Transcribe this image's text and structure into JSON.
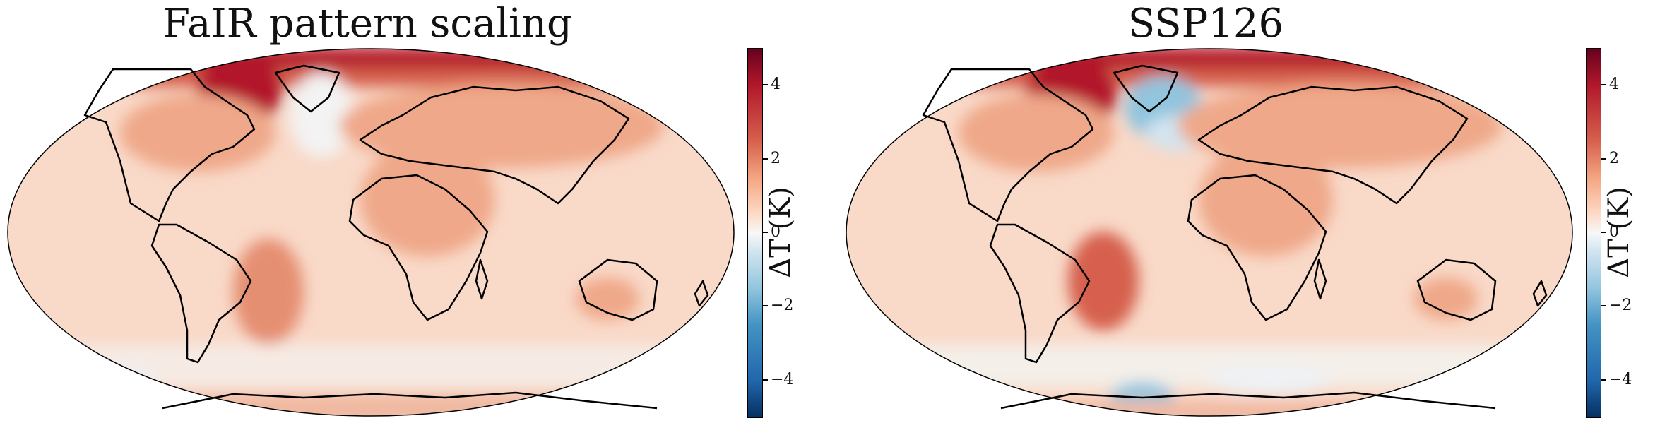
{
  "figure": {
    "panels": [
      {
        "title": "FaIR pattern scaling",
        "colorbar_label": "ΔT (K)",
        "tick_labels": [
          "4",
          "2",
          "0",
          "−2",
          "−4"
        ],
        "tick_values": [
          4,
          2,
          0,
          -2,
          -4
        ],
        "range": [
          -5,
          5
        ]
      },
      {
        "title": "SSP126",
        "colorbar_label": "ΔT (K)",
        "tick_labels": [
          "4",
          "2",
          "0",
          "−2",
          "−4"
        ],
        "tick_values": [
          4,
          2,
          0,
          -2,
          -4
        ],
        "range": [
          -5,
          5
        ]
      }
    ],
    "colors": {
      "colormap": [
        "#053061",
        "#2166ac",
        "#4393c3",
        "#92c5de",
        "#d1e5f0",
        "#f7f7f7",
        "#fddbc7",
        "#f4a582",
        "#d6604d",
        "#b2182b",
        "#67001f"
      ],
      "ocean_base": "#f9d9c8",
      "land_warm": "#efa889",
      "arctic_hot": "#b2182b",
      "cool_patch": "#92c5de",
      "near_zero": "#f3f3f3"
    }
  }
}
